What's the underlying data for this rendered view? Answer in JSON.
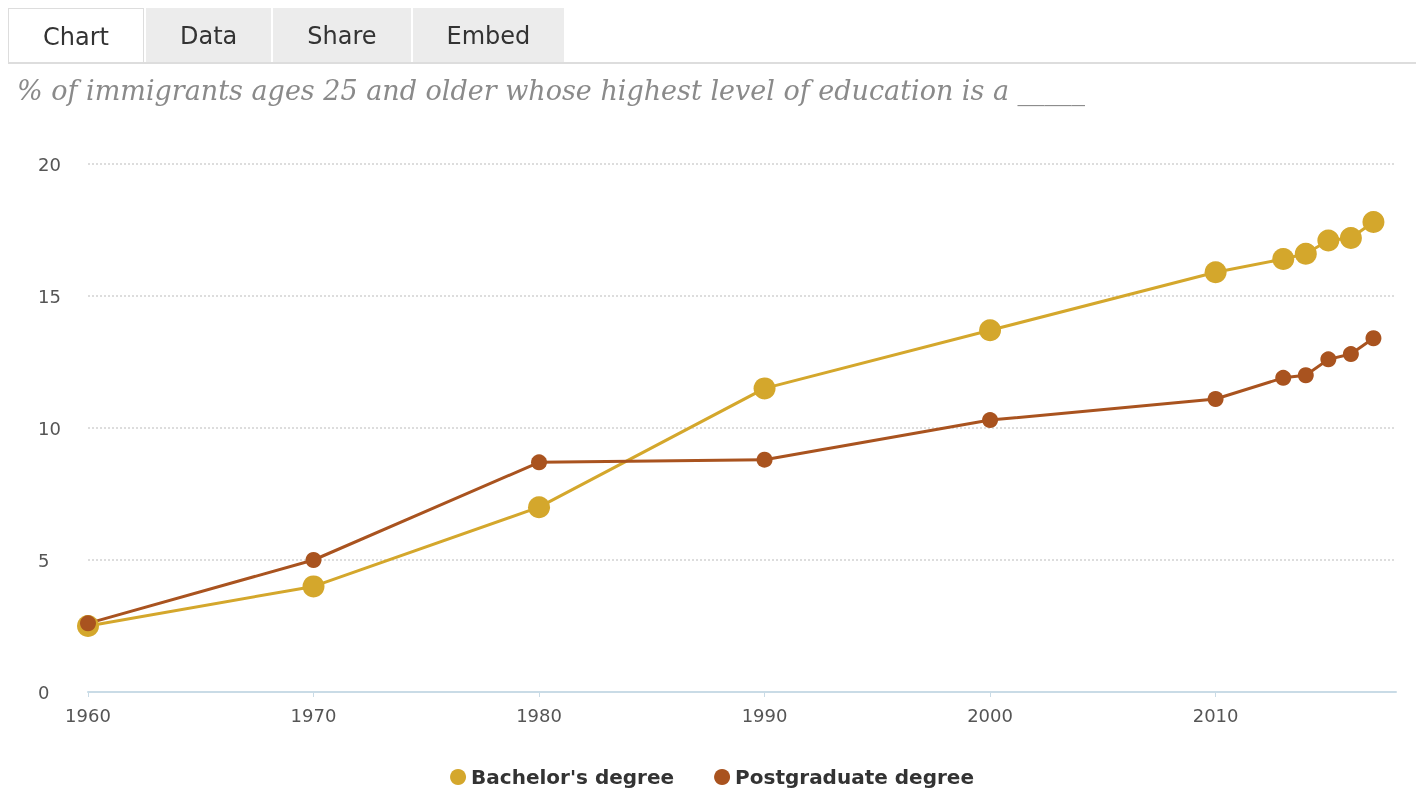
{
  "chart_data": {
    "type": "line",
    "title": "% of immigrants ages 25 and older whose highest level of education is a _____",
    "annotations": [
      "Chart",
      "Data",
      "Share",
      "Embed"
    ],
    "x": [
      1960,
      1970,
      1980,
      1990,
      2000,
      2010,
      2013,
      2014,
      2015,
      2016,
      2017
    ],
    "series": [
      {
        "name": "Bachelor's degree",
        "color": "#d4a72c",
        "values": [
          2.5,
          4.0,
          7.0,
          11.5,
          13.7,
          15.9,
          16.4,
          16.6,
          17.1,
          17.2,
          17.8
        ]
      },
      {
        "name": "Postgraduate degree",
        "color": "#a9531f",
        "values": [
          2.6,
          5.0,
          8.7,
          8.8,
          10.3,
          11.1,
          11.9,
          12.0,
          12.6,
          12.8,
          13.4
        ]
      }
    ],
    "xlim": [
      1960,
      2018
    ],
    "xticks": [
      1960,
      1970,
      1980,
      1990,
      2000,
      2010
    ],
    "ylim": [
      0,
      20
    ],
    "yticks": [
      0,
      5,
      10,
      15,
      20
    ],
    "grid": "y",
    "legend": "bottom",
    "marker": "circle",
    "line_style": "solid"
  }
}
